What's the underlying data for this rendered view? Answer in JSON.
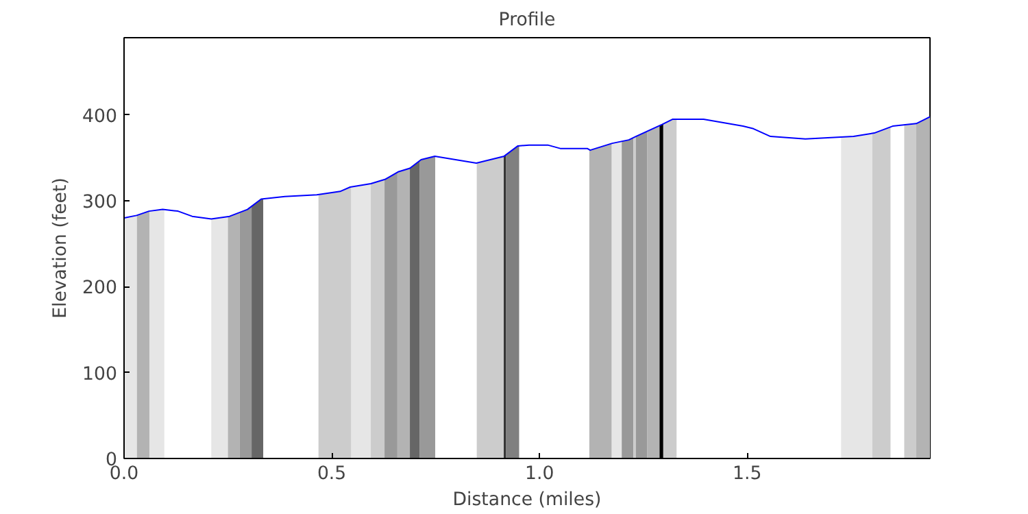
{
  "chart_data": {
    "type": "line",
    "title": "Profile",
    "xlabel": "Distance (miles)",
    "ylabel": "Elevation (feet)",
    "xlim": [
      0,
      1.94
    ],
    "ylim": [
      0,
      490
    ],
    "xticks": [
      {
        "value": 0,
        "label": "0.0"
      },
      0.5,
      {
        "value": 1,
        "label": "1.0"
      },
      1.5
    ],
    "yticks": [
      0,
      100,
      200,
      300,
      400
    ],
    "grid": false,
    "marker": "none",
    "line_style": "solid",
    "series": [
      {
        "color": "#0000ff",
        "x": [
          0,
          0.03,
          0.06,
          0.093,
          0.13,
          0.164,
          0.21,
          0.254,
          0.297,
          0.33,
          0.387,
          0.464,
          0.52,
          0.544,
          0.594,
          0.628,
          0.661,
          0.688,
          0.715,
          0.748,
          0.848,
          0.915,
          0.948,
          0.975,
          1.02,
          1.05,
          1.115,
          1.122,
          1.175,
          1.215,
          1.232,
          1.295,
          1.32,
          1.395,
          1.49,
          1.515,
          1.556,
          1.64,
          1.756,
          1.806,
          1.85,
          1.907,
          1.94
        ],
        "values": [
          280,
          283,
          288,
          290,
          288,
          282,
          279,
          282,
          290,
          302,
          305,
          307,
          311,
          316,
          320,
          325,
          334,
          338,
          348,
          352,
          344,
          352,
          364,
          365,
          365,
          361,
          361,
          359,
          367,
          371,
          375,
          389,
          395,
          395,
          387,
          384,
          375,
          372,
          375,
          379,
          387,
          390,
          398
        ]
      }
    ],
    "bands": [
      {
        "axis": "x",
        "from": 0,
        "to": 0.031,
        "color": "#e6e6e6"
      },
      {
        "axis": "x",
        "from": 0.031,
        "to": 0.061,
        "color": "#b3b3b3"
      },
      {
        "axis": "x",
        "from": 0.061,
        "to": 0.097,
        "color": "#e6e6e6"
      },
      {
        "axis": "x",
        "from": 0.21,
        "to": 0.25,
        "color": "#e6e6e6"
      },
      {
        "axis": "x",
        "from": 0.25,
        "to": 0.278,
        "color": "#b3b3b3"
      },
      {
        "axis": "x",
        "from": 0.278,
        "to": 0.307,
        "color": "#999999"
      },
      {
        "axis": "x",
        "from": 0.307,
        "to": 0.335,
        "color": "#666666"
      },
      {
        "axis": "x",
        "from": 0.468,
        "to": 0.547,
        "color": "#cccccc"
      },
      {
        "axis": "x",
        "from": 0.547,
        "to": 0.594,
        "color": "#e6e6e6"
      },
      {
        "axis": "x",
        "from": 0.594,
        "to": 0.627,
        "color": "#cccccc"
      },
      {
        "axis": "x",
        "from": 0.627,
        "to": 0.658,
        "color": "#999999"
      },
      {
        "axis": "x",
        "from": 0.658,
        "to": 0.688,
        "color": "#b3b3b3"
      },
      {
        "axis": "x",
        "from": 0.688,
        "to": 0.712,
        "color": "#666666"
      },
      {
        "axis": "x",
        "from": 0.712,
        "to": 0.749,
        "color": "#999999"
      },
      {
        "axis": "x",
        "from": 0.849,
        "to": 0.914,
        "color": "#cccccc"
      },
      {
        "axis": "x",
        "from": 0.914,
        "to": 0.919,
        "color": "#333333"
      },
      {
        "axis": "x",
        "from": 0.919,
        "to": 0.951,
        "color": "#808080"
      },
      {
        "axis": "x",
        "from": 1.12,
        "to": 1.174,
        "color": "#b3b3b3"
      },
      {
        "axis": "x",
        "from": 1.174,
        "to": 1.198,
        "color": "#e6e6e6"
      },
      {
        "axis": "x",
        "from": 1.198,
        "to": 1.226,
        "color": "#999999"
      },
      {
        "axis": "x",
        "from": 1.226,
        "to": 1.232,
        "color": "#cccccc"
      },
      {
        "axis": "x",
        "from": 1.232,
        "to": 1.259,
        "color": "#999999"
      },
      {
        "axis": "x",
        "from": 1.259,
        "to": 1.289,
        "color": "#b3b3b3"
      },
      {
        "axis": "x",
        "from": 1.289,
        "to": 1.298,
        "color": "#000000"
      },
      {
        "axis": "x",
        "from": 1.298,
        "to": 1.33,
        "color": "#cccccc"
      },
      {
        "axis": "x",
        "from": 1.726,
        "to": 1.801,
        "color": "#e6e6e6"
      },
      {
        "axis": "x",
        "from": 1.801,
        "to": 1.845,
        "color": "#cccccc"
      },
      {
        "axis": "x",
        "from": 1.878,
        "to": 1.907,
        "color": "#cccccc"
      },
      {
        "axis": "x",
        "from": 1.907,
        "to": 1.94,
        "color": "#b3b3b3"
      }
    ]
  }
}
